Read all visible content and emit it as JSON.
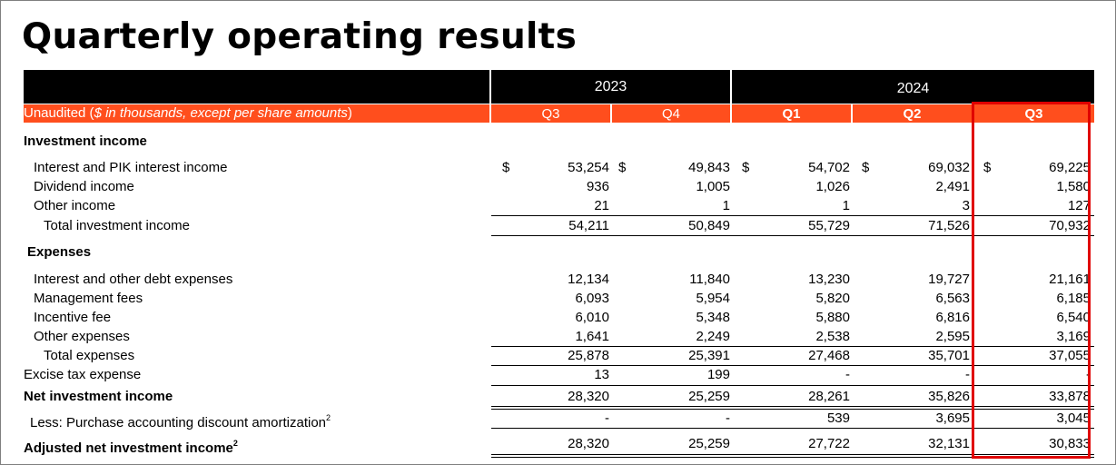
{
  "title": "Quarterly operating results",
  "years": [
    "2023",
    "2024"
  ],
  "subheader": {
    "prefix": "Unaudited (",
    "italic": "$ in thousands, except per share amounts",
    "suffix": ")"
  },
  "quarters": [
    "Q3",
    "Q4",
    "Q1",
    "Q2",
    "Q3"
  ],
  "currency_symbol": "$",
  "sections": {
    "investment_income": "Investment income",
    "expenses": "Expenses"
  },
  "rows": {
    "interest_pik": {
      "label": "Interest and PIK interest income",
      "values": [
        "53,254",
        "49,843",
        "54,702",
        "69,032",
        "69,225"
      ]
    },
    "dividend": {
      "label": "Dividend income",
      "values": [
        "936",
        "1,005",
        "1,026",
        "2,491",
        "1,580"
      ]
    },
    "other_income": {
      "label": "Other income",
      "values": [
        "21",
        "1",
        "1",
        "3",
        "127"
      ]
    },
    "total_investment_income": {
      "label": "Total investment income",
      "values": [
        "54,211",
        "50,849",
        "55,729",
        "71,526",
        "70,932"
      ]
    },
    "interest_debt": {
      "label": "Interest and other debt expenses",
      "values": [
        "12,134",
        "11,840",
        "13,230",
        "19,727",
        "21,161"
      ]
    },
    "management_fees": {
      "label": "Management fees",
      "values": [
        "6,093",
        "5,954",
        "5,820",
        "6,563",
        "6,185"
      ]
    },
    "incentive_fee": {
      "label": "Incentive fee",
      "values": [
        "6,010",
        "5,348",
        "5,880",
        "6,816",
        "6,540"
      ]
    },
    "other_expenses": {
      "label": "Other expenses",
      "values": [
        "1,641",
        "2,249",
        "2,538",
        "2,595",
        "3,169"
      ]
    },
    "total_expenses": {
      "label": "Total expenses",
      "values": [
        "25,878",
        "25,391",
        "27,468",
        "35,701",
        "37,055"
      ]
    },
    "excise_tax": {
      "label": "Excise tax expense",
      "values": [
        "13",
        "199",
        "-",
        "-",
        "-"
      ]
    },
    "net_investment_income": {
      "label": "Net investment income",
      "values": [
        "28,320",
        "25,259",
        "28,261",
        "35,826",
        "33,878"
      ]
    },
    "less_purchase": {
      "label": "Less: Purchase accounting discount amortization",
      "footnote": "2",
      "values": [
        "-",
        "-",
        "539",
        "3,695",
        "3,045"
      ]
    },
    "adjusted_nii": {
      "label": "Adjusted net investment income",
      "footnote": "2",
      "values": [
        "28,320",
        "25,259",
        "27,722",
        "32,131",
        "30,833"
      ]
    }
  },
  "colors": {
    "header_black": "#000000",
    "accent_orange": "#ff4e1d",
    "highlight_red": "#e00000"
  }
}
